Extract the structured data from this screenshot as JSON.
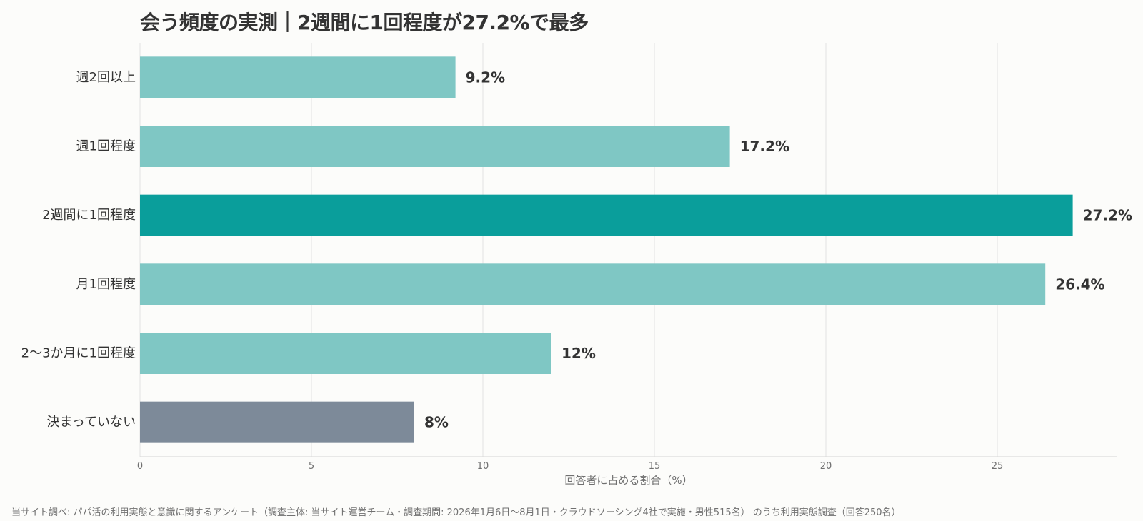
{
  "chart_data": {
    "type": "bar",
    "orientation": "horizontal",
    "title": "会う頻度の実測｜2週間に1回程度が27.2%で最多",
    "xlabel": "回答者に占める割合（%）",
    "ylabel": "",
    "xlim": [
      0,
      28.5
    ],
    "xticks": [
      0,
      5,
      10,
      15,
      20,
      25
    ],
    "grid": true,
    "categories": [
      "週2回以上",
      "週1回程度",
      "2週間に1回程度",
      "月1回程度",
      "2〜3か月に1回程度",
      "決まっていない"
    ],
    "values": [
      9.2,
      17.2,
      27.2,
      26.4,
      12,
      8
    ],
    "value_labels": [
      "9.2%",
      "17.2%",
      "27.2%",
      "26.4%",
      "12%",
      "8%"
    ],
    "colors": [
      "#7fc7c4",
      "#7fc7c4",
      "#0a9e9b",
      "#7fc7c4",
      "#7fc7c4",
      "#7d8a99"
    ]
  },
  "source_note": "当サイト調べ: パパ活の利用実態と意識に関するアンケート（調査主体: 当サイト運営チーム・調査期間: 2026年1月6日〜8月1日・クラウドソーシング4社で実施・男性515名） のうち利用実態調査（回答250名）"
}
